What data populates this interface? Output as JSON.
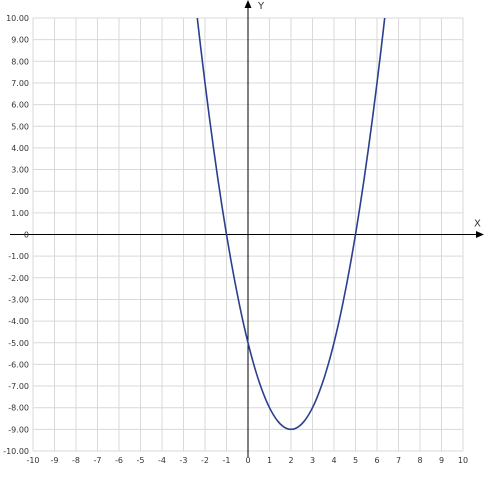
{
  "chart_data": {
    "type": "line",
    "title": "",
    "xlabel": "X",
    "ylabel": "Y",
    "xlim": [
      -10,
      10
    ],
    "ylim": [
      -10,
      10
    ],
    "grid": true,
    "x_ticks": [
      "-10",
      "-9",
      "-8",
      "-7",
      "-6",
      "-5",
      "-4",
      "-3",
      "-2",
      "-1",
      "0",
      "1",
      "2",
      "3",
      "4",
      "5",
      "6",
      "7",
      "8",
      "9",
      "10"
    ],
    "y_ticks": [
      "10.00",
      "9.00",
      "8.00",
      "7.00",
      "6.00",
      "5.00",
      "4.00",
      "3.00",
      "2.00",
      "1.00",
      "0",
      "-1.00",
      "-2.00",
      "-3.00",
      "-4.00",
      "-5.00",
      "-6.00",
      "-7.00",
      "-8.00",
      "-9.00",
      "-10.00"
    ],
    "series": [
      {
        "color": "#2a3f8f",
        "x": [
          -2.4,
          -2.2,
          -2.0,
          -1.8,
          -1.6,
          -1.4,
          -1.2,
          -1.0,
          -0.8,
          -0.6,
          -0.4,
          -0.2,
          0.0,
          0.2,
          0.4,
          0.6,
          0.8,
          1.0,
          1.2,
          1.4,
          1.6,
          1.8,
          2.0,
          2.2,
          2.4,
          2.6,
          2.8,
          3.0,
          3.2,
          3.4,
          3.6,
          3.8,
          4.0,
          4.2,
          4.4,
          4.6,
          4.8,
          5.0,
          5.2,
          5.4,
          5.6,
          5.8,
          6.0,
          6.2,
          6.4
        ],
        "y": [
          10.36,
          8.64,
          7.0,
          5.44,
          3.96,
          2.56,
          1.24,
          0.0,
          -1.16,
          -2.24,
          -3.24,
          -4.16,
          -5.0,
          -5.76,
          -6.44,
          -7.04,
          -7.56,
          -8.0,
          -8.36,
          -8.64,
          -8.84,
          -8.96,
          -9.0,
          -8.96,
          -8.84,
          -8.64,
          -8.36,
          -8.0,
          -7.56,
          -7.04,
          -6.44,
          -5.76,
          -5.0,
          -4.16,
          -3.24,
          -2.24,
          -1.16,
          0.0,
          1.24,
          2.56,
          3.96,
          5.44,
          7.0,
          8.64,
          10.36
        ]
      }
    ]
  },
  "colors": {
    "grid": "#d9d9d9",
    "axis": "#000000",
    "curve": "#2a3f8f"
  }
}
